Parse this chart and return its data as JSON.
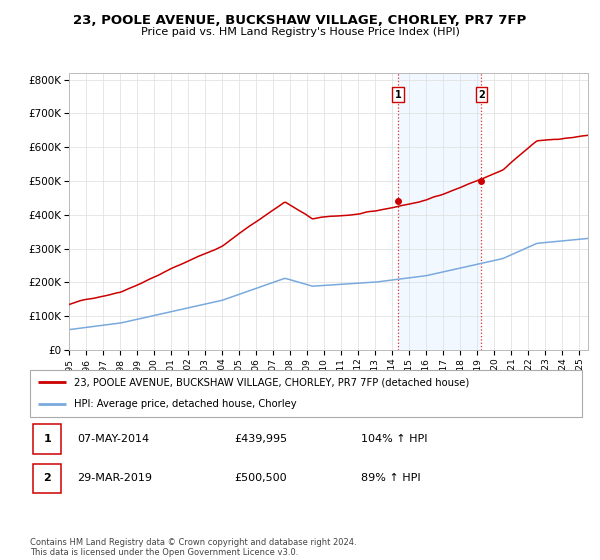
{
  "title": "23, POOLE AVENUE, BUCKSHAW VILLAGE, CHORLEY, PR7 7FP",
  "subtitle": "Price paid vs. HM Land Registry's House Price Index (HPI)",
  "red_line_label": "23, POOLE AVENUE, BUCKSHAW VILLAGE, CHORLEY, PR7 7FP (detached house)",
  "blue_line_label": "HPI: Average price, detached house, Chorley",
  "point1_x": 2014.35,
  "point1_y": 439995,
  "point1_label": "07-MAY-2014",
  "point1_price": "£439,995",
  "point1_hpi": "104% ↑ HPI",
  "point2_x": 2019.24,
  "point2_y": 500500,
  "point2_label": "29-MAR-2019",
  "point2_price": "£500,500",
  "point2_hpi": "89% ↑ HPI",
  "footnote": "Contains HM Land Registry data © Crown copyright and database right 2024.\nThis data is licensed under the Open Government Licence v3.0.",
  "red_color": "#cc0000",
  "blue_color": "#7aaadd",
  "grid_color": "#dddddd",
  "background_color": "#ffffff",
  "highlight_bg": "#ddeeff",
  "ylim": [
    0,
    800000
  ],
  "xlim_start": 1995.0,
  "xlim_end": 2025.5
}
